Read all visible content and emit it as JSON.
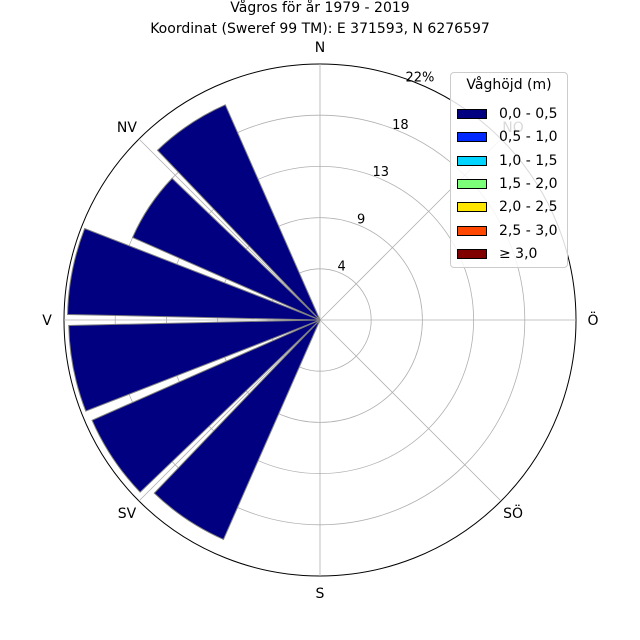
{
  "header": {
    "title": "Vågros för år 1979 - 2019",
    "subtitle": "Koordinat (Sweref 99 TM): E 371593, N 6276597"
  },
  "chart_data": {
    "type": "polar-bar",
    "title": "Vågros för år 1979 - 2019",
    "subtitle": "Koordinat (Sweref 99 TM): E 371593, N 6276597",
    "directions": [
      "N",
      "NO",
      "Ö",
      "SÖ",
      "S",
      "SV",
      "V",
      "NV"
    ],
    "radial_ticks": [
      "4",
      "9",
      "13",
      "18",
      "22%"
    ],
    "radial_tick_values": [
      4.4,
      8.8,
      13.2,
      17.6,
      22.0
    ],
    "rmax": 22.0,
    "grid": true,
    "legend_title": "Våghöjd (m)",
    "legend_placement": "top-right",
    "legend": [
      {
        "label": "0,0 - 0,5",
        "color": "#000080"
      },
      {
        "label": "0,5 - 1,0",
        "color": "#0028ff"
      },
      {
        "label": "1,0 - 1,5",
        "color": "#00d4ff"
      },
      {
        "label": "1,5 - 2,0",
        "color": "#7cff79"
      },
      {
        "label": "2,0 - 2,5",
        "color": "#ffe600"
      },
      {
        "label": "2,5 - 3,0",
        "color": "#ff4700"
      },
      {
        "label": "≥ 3,0",
        "color": "#800000"
      }
    ],
    "series": [
      {
        "name": "0,0 - 0,5",
        "bars": [
          {
            "direction_deg": 213.75,
            "value": 20.6
          },
          {
            "direction_deg": 236.25,
            "value": 21.4
          },
          {
            "direction_deg": 258.75,
            "value": 21.6
          },
          {
            "direction_deg": 281.25,
            "value": 21.7
          },
          {
            "direction_deg": 303.75,
            "value": 17.6
          },
          {
            "direction_deg": 326.25,
            "value": 20.2
          }
        ]
      }
    ],
    "bar_width_deg": 20
  }
}
